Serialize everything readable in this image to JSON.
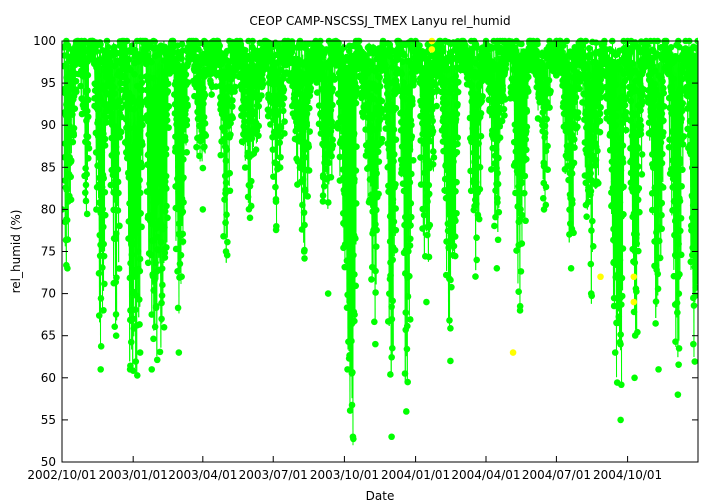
{
  "chart_data": {
    "type": "scatter",
    "title": "CEOP CAMP-NSCSSJ_TMEX Lanyu  rel_humid",
    "xlabel": "Date",
    "ylabel": "rel_humid (%)",
    "xlim": [
      "2002-10-01",
      "2004-12-31"
    ],
    "ylim": [
      50,
      100
    ],
    "x_ticks": [
      "2002/10/01",
      "2003/01/01",
      "2003/04/01",
      "2003/07/01",
      "2003/10/01",
      "2004/01/01",
      "2004/04/01",
      "2004/07/01",
      "2004/10/01"
    ],
    "y_ticks": [
      50,
      55,
      60,
      65,
      70,
      75,
      80,
      85,
      90,
      95,
      100
    ],
    "grid": false,
    "legend": "none",
    "series": [
      {
        "color": "#00ff00",
        "style": "points connected by thin lines, dense hourly record",
        "points": [
          [
            "2002-10-01",
            80
          ],
          [
            "2002-10-08",
            73
          ],
          [
            "2002-10-15",
            88
          ],
          [
            "2002-10-22",
            100
          ],
          [
            "2002-11-01",
            81
          ],
          [
            "2002-11-10",
            100
          ],
          [
            "2002-11-20",
            61
          ],
          [
            "2002-12-01",
            92
          ],
          [
            "2002-12-10",
            65
          ],
          [
            "2002-12-20",
            100
          ],
          [
            "2002-12-28",
            61
          ],
          [
            "2003-01-10",
            63
          ],
          [
            "2003-01-15",
            100
          ],
          [
            "2003-01-25",
            61
          ],
          [
            "2003-02-10",
            66
          ],
          [
            "2003-02-20",
            100
          ],
          [
            "2003-03-01",
            63
          ],
          [
            "2003-03-15",
            100
          ],
          [
            "2003-04-01",
            80
          ],
          [
            "2003-04-15",
            100
          ],
          [
            "2003-05-01",
            75
          ],
          [
            "2003-05-15",
            100
          ],
          [
            "2003-06-01",
            79
          ],
          [
            "2003-06-20",
            100
          ],
          [
            "2003-07-05",
            78
          ],
          [
            "2003-07-20",
            100
          ],
          [
            "2003-08-10",
            75
          ],
          [
            "2003-08-25",
            100
          ],
          [
            "2003-09-10",
            70
          ],
          [
            "2003-09-20",
            100
          ],
          [
            "2003-10-05",
            61
          ],
          [
            "2003-10-12",
            53
          ],
          [
            "2003-10-20",
            100
          ],
          [
            "2003-11-10",
            64
          ],
          [
            "2003-11-20",
            100
          ],
          [
            "2003-12-01",
            53
          ],
          [
            "2003-12-10",
            100
          ],
          [
            "2003-12-20",
            56
          ],
          [
            "2004-01-01",
            100
          ],
          [
            "2004-01-15",
            69
          ],
          [
            "2004-02-01",
            100
          ],
          [
            "2004-02-15",
            62
          ],
          [
            "2004-03-01",
            100
          ],
          [
            "2004-03-20",
            74
          ],
          [
            "2004-04-01",
            100
          ],
          [
            "2004-04-15",
            73
          ],
          [
            "2004-05-01",
            100
          ],
          [
            "2004-05-15",
            68
          ],
          [
            "2004-06-01",
            100
          ],
          [
            "2004-06-15",
            80
          ],
          [
            "2004-07-01",
            100
          ],
          [
            "2004-07-20",
            73
          ],
          [
            "2004-08-01",
            100
          ],
          [
            "2004-08-15",
            70
          ],
          [
            "2004-09-01",
            100
          ],
          [
            "2004-09-15",
            63
          ],
          [
            "2004-09-22",
            55
          ],
          [
            "2004-10-01",
            100
          ],
          [
            "2004-10-10",
            60
          ],
          [
            "2004-10-25",
            100
          ],
          [
            "2004-11-10",
            61
          ],
          [
            "2004-11-20",
            100
          ],
          [
            "2004-12-05",
            58
          ],
          [
            "2004-12-15",
            100
          ],
          [
            "2004-12-25",
            64
          ]
        ]
      },
      {
        "color": "#ffff00",
        "style": "isolated points",
        "points": [
          [
            "2004-01-22",
            100
          ],
          [
            "2004-01-22",
            99
          ],
          [
            "2004-05-06",
            63
          ],
          [
            "2004-08-27",
            72
          ],
          [
            "2004-10-09",
            72
          ],
          [
            "2004-10-09",
            69
          ]
        ]
      }
    ]
  }
}
